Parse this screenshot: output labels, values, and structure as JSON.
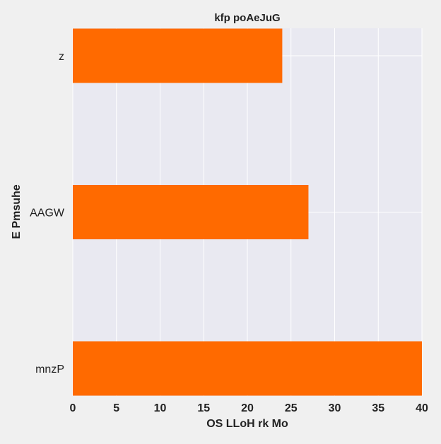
{
  "chart_data": {
    "type": "bar",
    "orientation": "horizontal",
    "title": "kfp  poAeJuG",
    "xlabel": "OS LLoH rk Mo",
    "ylabel": "E Pmsuhe",
    "categories": [
      "z",
      "AAGW",
      "mnzP"
    ],
    "values": [
      24,
      27,
      40
    ],
    "xlim": [
      0,
      40
    ],
    "xticks": [
      "0",
      "5",
      "10",
      "15",
      "20",
      "25",
      "30",
      "35",
      "40"
    ],
    "grid": true,
    "legend": "none",
    "colors": {
      "bar": "#ff6a00",
      "plot_background": "#e9e9f1",
      "figure_background": "#f0f0f0",
      "grid": "#ffffff",
      "text": "#222222"
    }
  }
}
